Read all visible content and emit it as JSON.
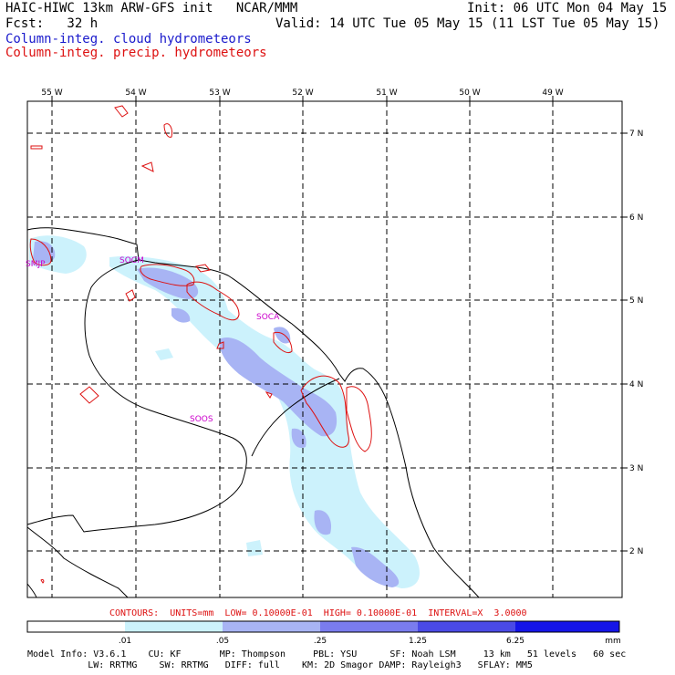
{
  "header": {
    "model_line": "HAIC-HIWC 13km ARW-GFS init   NCAR/MMM",
    "init_line": "Init: 06 UTC Mon 04 May 15",
    "fcst_line": "Fcst:   32 h",
    "valid_line": "Valid: 14 UTC Tue 05 May 15 (11 LST Tue 05 May 15)",
    "field1": "Column-integ. cloud hydrometeors",
    "field2": "Column-integ. precip. hydrometeors",
    "field1_color": "#1a1acc",
    "field2_color": "#dd1111"
  },
  "map": {
    "lon_labels": [
      "55 W",
      "54 W",
      "53 W",
      "52 W",
      "51 W",
      "50 W",
      "49 W"
    ],
    "lat_labels": [
      "7 N",
      "6 N",
      "5 N",
      "4 N",
      "3 N",
      "2 N"
    ],
    "stations": [
      "SMJP",
      "SOCM",
      "SOCA",
      "SOOS"
    ],
    "station_color": "#cc00cc",
    "coast_color": "#000000"
  },
  "contours": {
    "info": "CONTOURS:  UNITS=mm  LOW= 0.10000E-01  HIGH= 0.10000E-01  INTERVAL=X  3.0000",
    "color": "#dd1111"
  },
  "colorbar": {
    "ticks": [
      ".01",
      ".05",
      ".25",
      "1.25",
      "6.25"
    ],
    "unit": "mm",
    "colors": [
      "#ffffff",
      "#ccf2fc",
      "#a8b4f4",
      "#7a7cee",
      "#4a4ae6",
      "#1515e8"
    ]
  },
  "footer": {
    "line1": "Model Info: V3.6.1    CU: KF       MP: Thompson     PBL: YSU      SF: Noah LSM     13 km   51 levels   60 sec",
    "line2": "           LW: RRTMG    SW: RRTMG   DIFF: full    KM: 2D Smagor DAMP: Rayleigh3   SFLAY: MM5"
  }
}
